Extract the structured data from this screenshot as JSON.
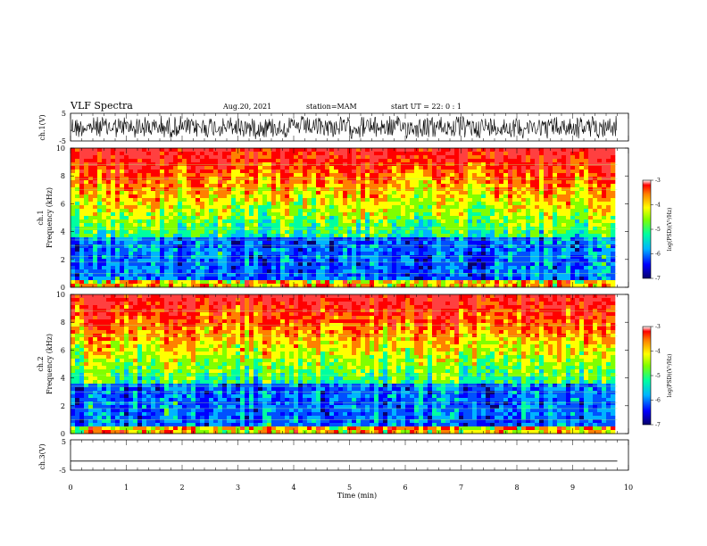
{
  "header": {
    "title": "VLF Spectra",
    "date": "Aug.20, 2021",
    "station": "station=MAM",
    "start": "start  UT =   22: 0  : 1"
  },
  "chart_data": [
    {
      "id": "ch1-waveform",
      "type": "line",
      "ylabel": "ch.1(V)",
      "yticks": [
        "5",
        "-5"
      ],
      "ylim": [
        -5,
        5
      ],
      "xlim": [
        0,
        10
      ],
      "note": "dense noisy waveform spanning roughly -4 to +4 V"
    },
    {
      "id": "ch1-spectrogram",
      "type": "heatmap",
      "ylabel": [
        "ch.1",
        "Frequency (kHz)"
      ],
      "yticks": [
        "0",
        "2",
        "4",
        "6",
        "8",
        "10"
      ],
      "ylim": [
        0,
        10
      ],
      "xlim": [
        0,
        10
      ],
      "colorbar": {
        "label": "log(PSD)(V²/Hz)",
        "ticks": [
          "-3",
          "-4",
          "-5",
          "-6",
          "-7"
        ],
        "range": [
          -7,
          -3
        ]
      }
    },
    {
      "id": "ch2-spectrogram",
      "type": "heatmap",
      "ylabel": [
        "ch.2",
        "Frequency (kHz)"
      ],
      "yticks": [
        "0",
        "2",
        "4",
        "6",
        "8",
        "10"
      ],
      "ylim": [
        0,
        10
      ],
      "xlim": [
        0,
        10
      ],
      "colorbar": {
        "label": "log(PSD)(V²/Hz)",
        "ticks": [
          "-3",
          "-4",
          "-5",
          "-6",
          "-7"
        ],
        "range": [
          -7,
          -3
        ]
      }
    },
    {
      "id": "ch3-waveform",
      "type": "line",
      "ylabel": "ch.3(V)",
      "yticks": [
        "5",
        "-5"
      ],
      "ylim": [
        -5,
        5
      ],
      "xlim": [
        0,
        10
      ],
      "values": [
        {
          "x": 0,
          "y": -2
        },
        {
          "x": 9.8,
          "y": -2
        }
      ]
    }
  ],
  "xaxis": {
    "label": "Time (min)",
    "ticks": [
      "0",
      "1",
      "2",
      "3",
      "4",
      "5",
      "6",
      "7",
      "8",
      "9",
      "10"
    ],
    "data_end": 9.8
  },
  "colors": {
    "c1": "#08006b",
    "c2": "#0000ff",
    "c3": "#00b4ff",
    "c4": "#00ffa0",
    "c5": "#80ff00",
    "c6": "#ffff00",
    "c7": "#ff8000",
    "c8": "#ff0000"
  }
}
